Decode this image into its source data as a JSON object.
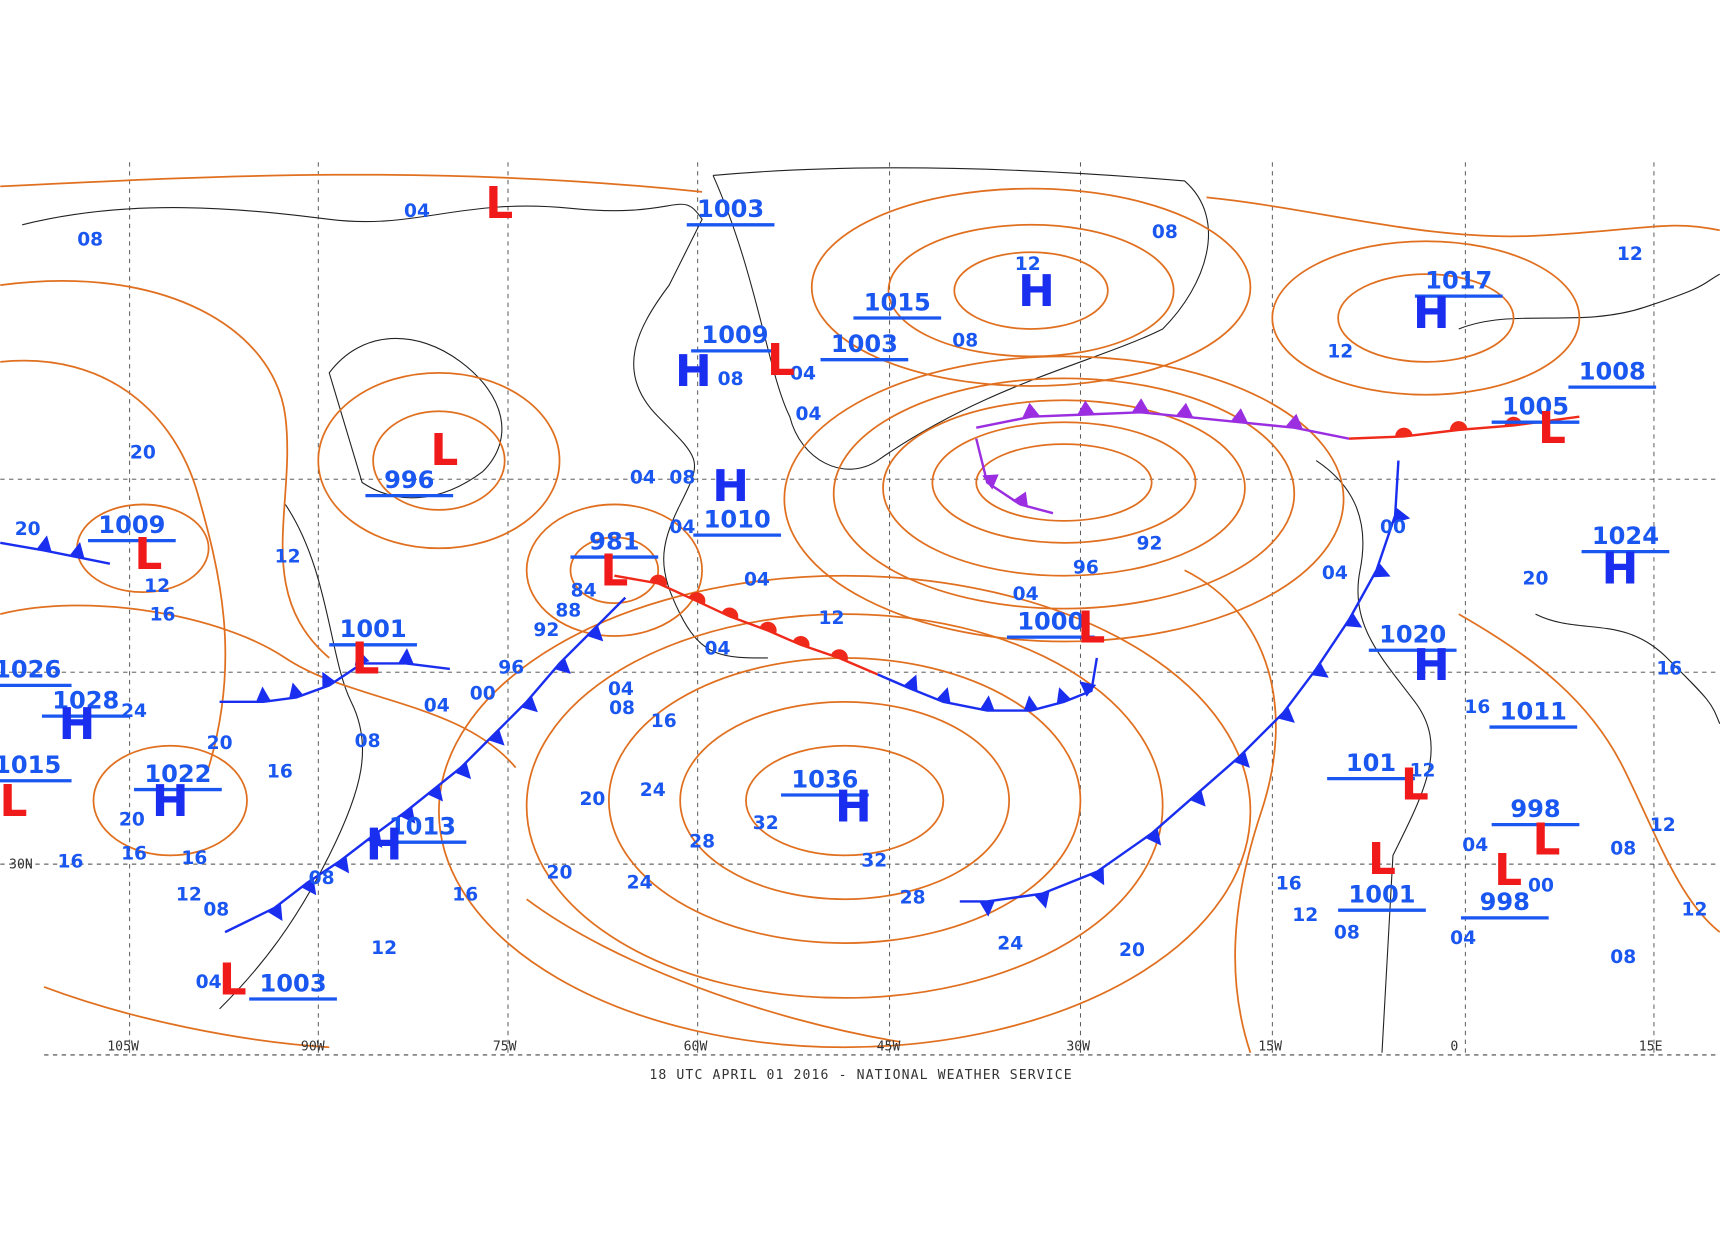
{
  "caption": "18 UTC APRIL 01 2016 - NATIONAL WEATHER SERVICE",
  "longitude_labels": [
    "105W",
    "90W",
    "75W",
    "60W",
    "45W",
    "30W",
    "15W",
    "0",
    "15E"
  ],
  "latitude_labels": [
    "30N"
  ],
  "pressure_values": [
    "1003",
    "1015",
    "1017",
    "1009",
    "1003",
    "1008",
    "1005",
    "996",
    "1010",
    "981",
    "1009",
    "1024",
    "1000",
    "1001",
    "1020",
    "1026",
    "1028",
    "1011",
    "1015",
    "1022",
    "1036",
    "101",
    "998",
    "1013",
    "1001",
    "998",
    "1003"
  ],
  "center_symbols": [
    "L",
    "H",
    "H",
    "H",
    "L",
    "L",
    "L",
    "H",
    "L",
    "L",
    "H",
    "L",
    "L",
    "H",
    "H",
    "L",
    "H",
    "H",
    "L",
    "L",
    "H",
    "L",
    "L",
    "L"
  ],
  "isobar_labels": [
    "04",
    "08",
    "08",
    "12",
    "08",
    "12",
    "08",
    "04",
    "04",
    "20",
    "04",
    "08",
    "20",
    "04",
    "00",
    "92",
    "12",
    "96",
    "04",
    "04",
    "12",
    "20",
    "84",
    "16",
    "88",
    "04",
    "12",
    "92",
    "96",
    "04",
    "04",
    "00",
    "04",
    "08",
    "16",
    "16",
    "16",
    "08",
    "20",
    "16",
    "24",
    "12",
    "20",
    "32",
    "28",
    "32",
    "20",
    "16",
    "16",
    "12",
    "08",
    "24",
    "20",
    "28",
    "08",
    "12",
    "16",
    "08",
    "04",
    "00",
    "16",
    "12",
    "08",
    "12",
    "04",
    "08",
    "12",
    "24",
    "20",
    "04",
    "24",
    "16",
    "12"
  ]
}
